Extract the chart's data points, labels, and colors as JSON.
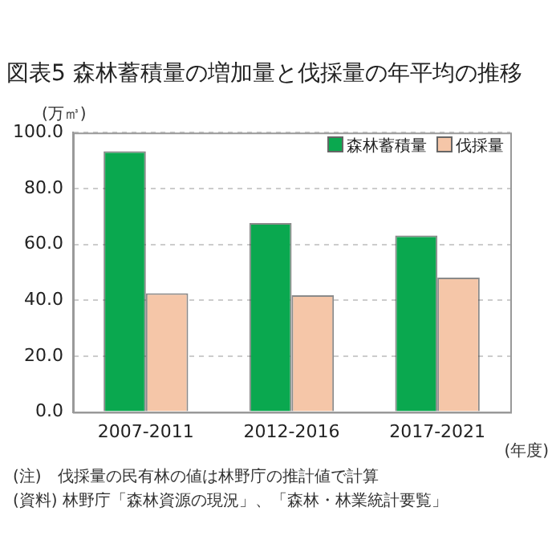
{
  "chart_data": {
    "type": "bar",
    "title": "図表5 森林蓄積量の増加量と伐採量の年平均の推移",
    "ylabel": "(万㎥)",
    "xlabel": "(年度)",
    "categories": [
      "2007-2011",
      "2012-2016",
      "2017-2021"
    ],
    "series": [
      {
        "name": "森林蓄積量",
        "color": "#0aa84f",
        "values": [
          93.3,
          67.6,
          63.2
        ]
      },
      {
        "name": "伐採量",
        "color": "#f5c6a8",
        "values": [
          42.5,
          41.8,
          48.1
        ]
      }
    ],
    "ylim": [
      0,
      100
    ],
    "yticks": [
      {
        "value": 0,
        "label": "0.0"
      },
      {
        "value": 20,
        "label": "20.0"
      },
      {
        "value": 40,
        "label": "40.0"
      },
      {
        "value": 60,
        "label": "60.0"
      },
      {
        "value": 80,
        "label": "80.0"
      },
      {
        "value": 100,
        "label": "100.0"
      }
    ],
    "grid": "y",
    "legend": "top right",
    "annotations": [
      "(注)　伐採量の民有林の値は林野庁の推計値で計算",
      "(資料) 林野庁「森林資源の現況」、「森林・林業統計要覧」"
    ]
  }
}
